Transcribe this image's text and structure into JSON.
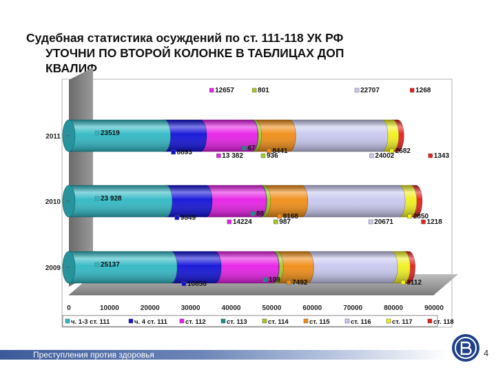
{
  "title": {
    "line1": "Судебная статистика осуждений по ст. 111-118 УК РФ",
    "line2": "УТОЧНИ ПО ВТОРОЙ КОЛОНКЕ В ТАБЛИЦАХ ДОП",
    "line3": "КВАЛИФ"
  },
  "footer": {
    "text": "Преступления против здоровья",
    "page": "4"
  },
  "chart_data": {
    "type": "bar",
    "orientation": "horizontal",
    "stacked": true,
    "style": "3d-cylinder",
    "categories": [
      "2011",
      "2010",
      "2009"
    ],
    "xlim": [
      0,
      90000
    ],
    "xticks": [
      "0",
      "10000",
      "20000",
      "30000",
      "40000",
      "50000",
      "60000",
      "70000",
      "80000",
      "90000"
    ],
    "grid": false,
    "legend_position": "bottom",
    "series": [
      {
        "name": "ч. 1-3 ст. 111",
        "color": "#2fb8c4",
        "values": [
          23519,
          23928,
          25137
        ],
        "labels": [
          "23519",
          "23 928",
          "25137"
        ]
      },
      {
        "name": "ч. 4 ст. 111",
        "color": "#1010d8",
        "values": [
          8893,
          9849,
          10856
        ],
        "labels": [
          "8893",
          "9849",
          "10856"
        ]
      },
      {
        "name": "ст. 112",
        "color": "#e61ee6",
        "values": [
          12657,
          13382,
          14224
        ],
        "labels": [
          "12657",
          "13 382",
          "14224"
        ]
      },
      {
        "name": "ст. 113",
        "color": "#1a8c8c",
        "values": [
          67,
          88,
          109
        ],
        "labels": [
          "67",
          "88",
          "109"
        ]
      },
      {
        "name": "ст. 114",
        "color": "#a8c81e",
        "values": [
          801,
          936,
          987
        ],
        "labels": [
          "801",
          "936",
          "987"
        ]
      },
      {
        "name": "ст. 115",
        "color": "#f08c14",
        "values": [
          8441,
          9168,
          7492
        ],
        "labels": [
          "8441",
          "9168",
          "7492"
        ]
      },
      {
        "name": "ст. 116",
        "color": "#c8c8f0",
        "values": [
          22707,
          24002,
          20671
        ],
        "labels": [
          "22707",
          "24002",
          "20671"
        ]
      },
      {
        "name": "ст. 117",
        "color": "#f0f01e",
        "values": [
          2682,
          2850,
          3112
        ],
        "labels": [
          "2682",
          "2850",
          "3112"
        ]
      },
      {
        "name": "ст. 118",
        "color": "#e61e1e",
        "values": [
          1268,
          1343,
          1218
        ],
        "labels": [
          "1268",
          "1343",
          "1218"
        ]
      }
    ]
  }
}
